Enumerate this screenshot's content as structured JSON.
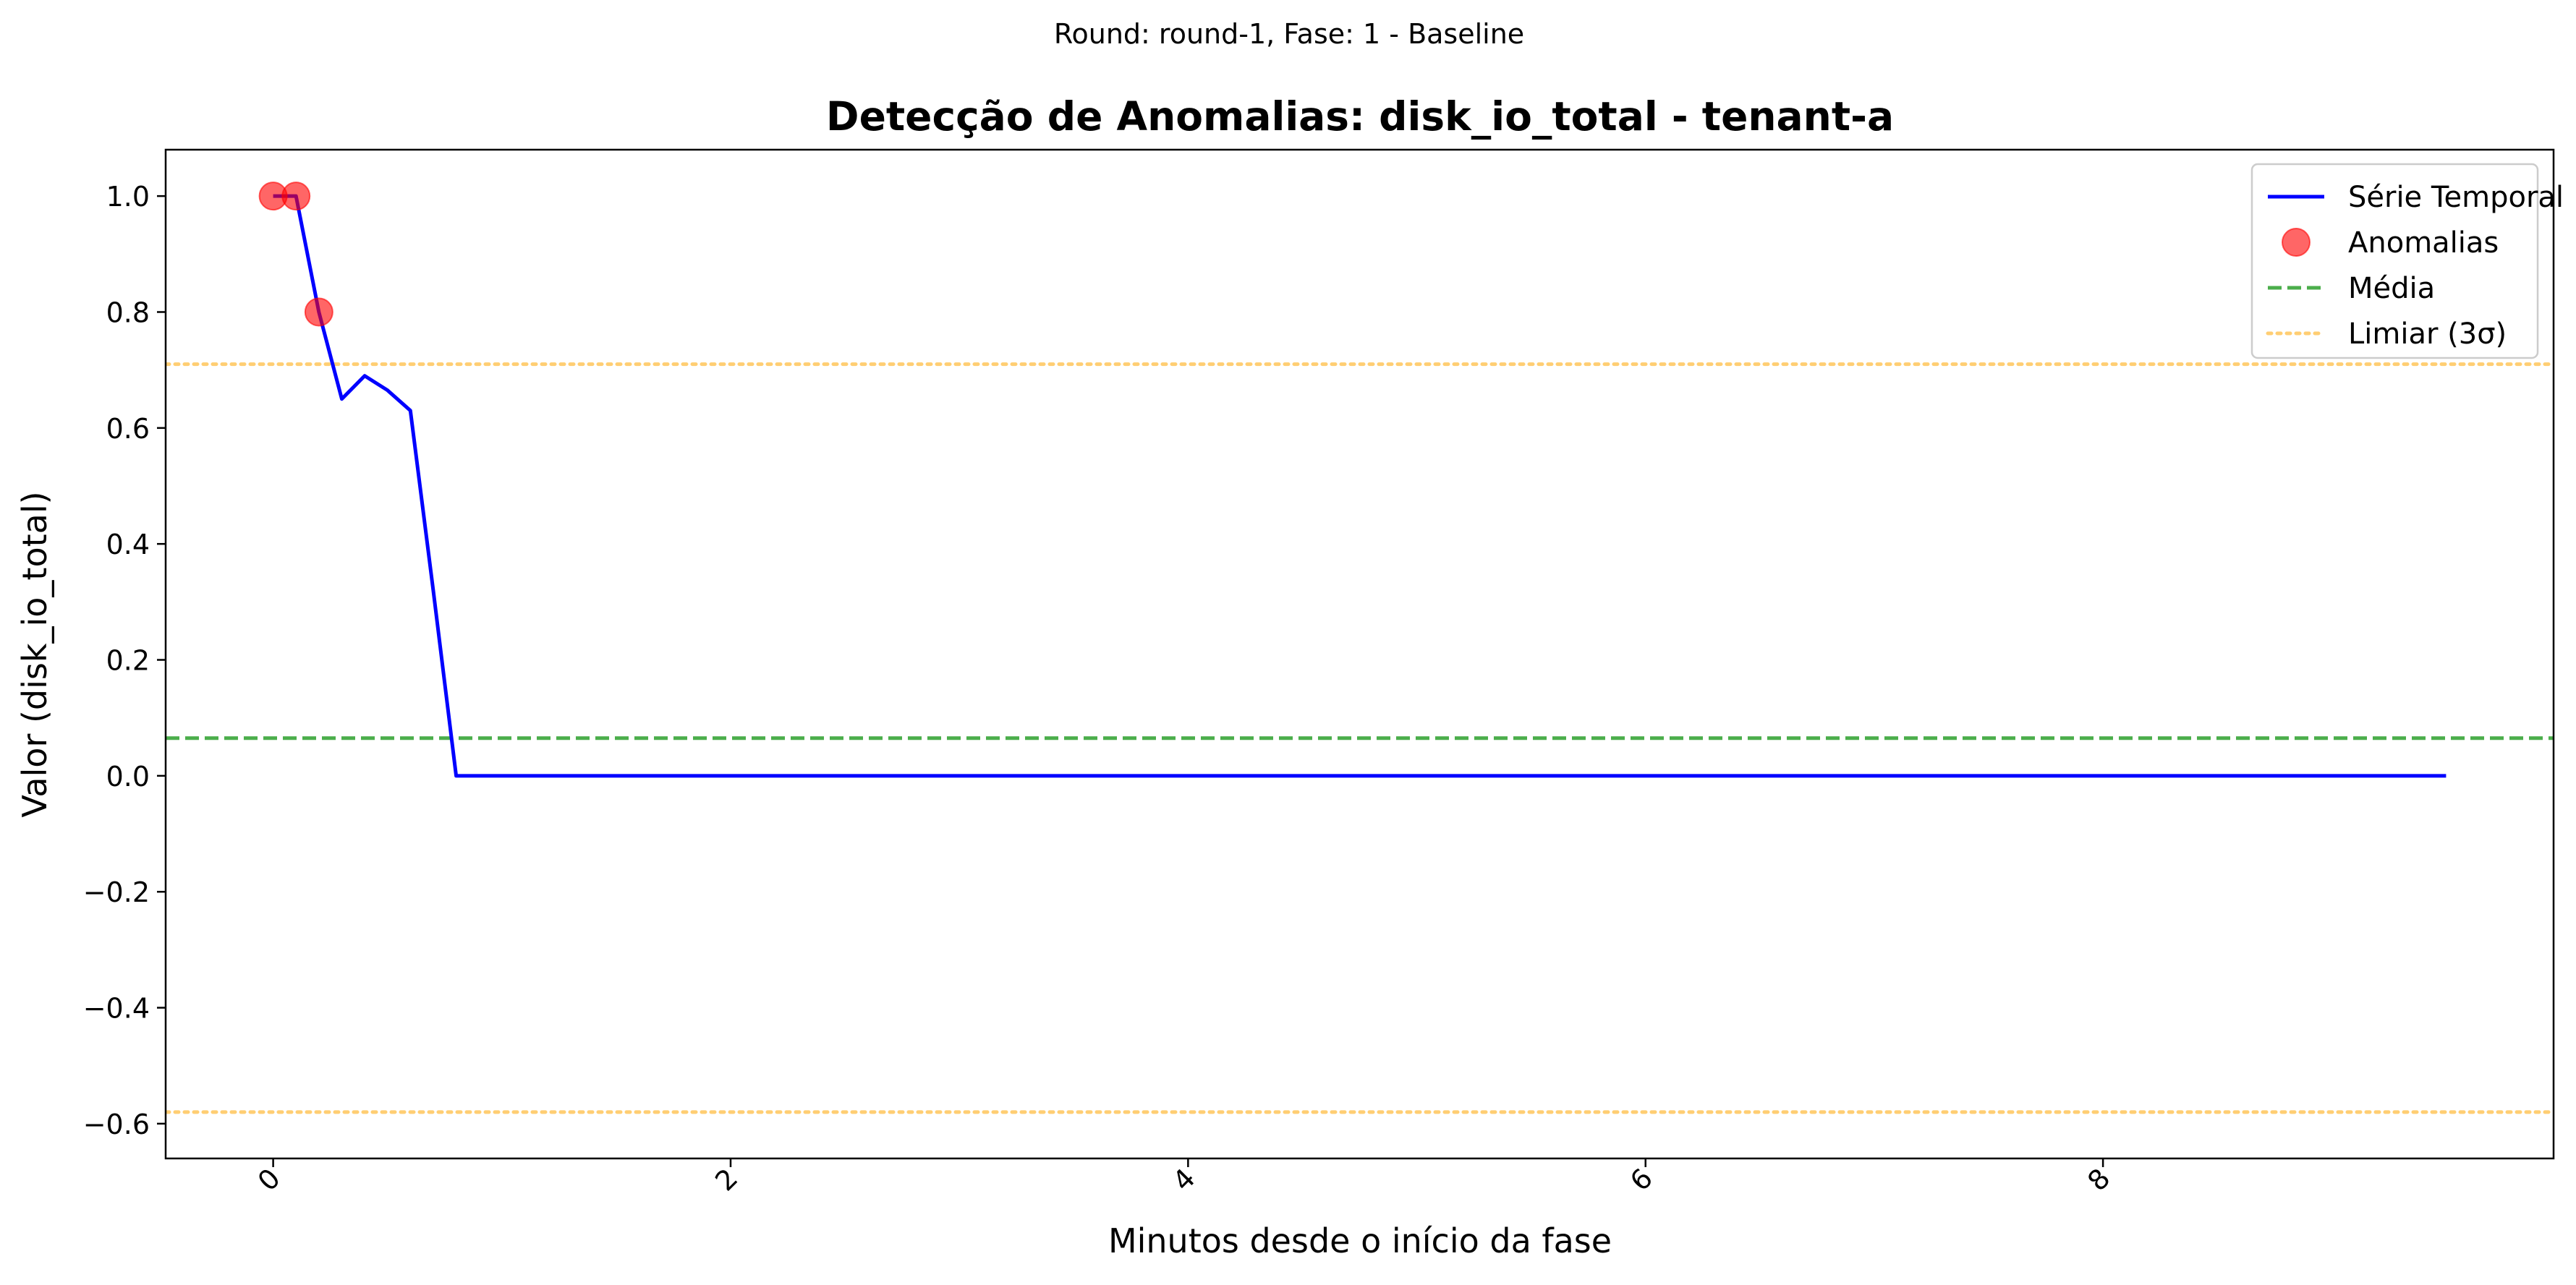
{
  "figure": {
    "suptitle": "Round: round-1, Fase: 1 - Baseline"
  },
  "colors": {
    "series": "#0000ff",
    "anomaly": "#ff0000",
    "mean": "#2ca02c",
    "threshold": "#ffa500"
  },
  "chart_data": {
    "type": "line",
    "title": "Detecção de Anomalias: disk_io_total - tenant-a",
    "xlabel": "Minutos desde o início da fase",
    "ylabel": "Valor (disk_io_total)",
    "xlim": [
      -0.47,
      9.97
    ],
    "ylim": [
      -0.66,
      1.08
    ],
    "xticks": [
      0,
      2,
      4,
      6,
      8
    ],
    "xtick_labels": [
      "0",
      "2",
      "4",
      "6",
      "8"
    ],
    "xtick_rotation": 45,
    "yticks": [
      -0.6,
      -0.4,
      -0.2,
      0.0,
      0.2,
      0.4,
      0.6,
      0.8,
      1.0
    ],
    "ytick_labels": [
      "−0.6",
      "−0.4",
      "−0.2",
      "0.0",
      "0.2",
      "0.4",
      "0.6",
      "0.8",
      "1.0"
    ],
    "grid": false,
    "legend_position": "top-right",
    "series": [
      {
        "name": "Série Temporal",
        "kind": "line",
        "x": [
          0.0,
          0.1,
          0.2,
          0.3,
          0.4,
          0.5,
          0.6,
          0.7,
          0.8,
          9.5
        ],
        "y": [
          1.0,
          1.0,
          0.8,
          0.65,
          0.69,
          0.665,
          0.63,
          0.32,
          0.0,
          0.0
        ]
      },
      {
        "name": "Anomalias",
        "kind": "scatter",
        "x": [
          0.0,
          0.1,
          0.2
        ],
        "y": [
          1.0,
          1.0,
          0.8
        ]
      },
      {
        "name": "Média",
        "kind": "hline",
        "y": 0.065
      },
      {
        "name": "Limiar (3σ)",
        "kind": "hline",
        "y": [
          0.71,
          -0.58
        ]
      }
    ]
  }
}
